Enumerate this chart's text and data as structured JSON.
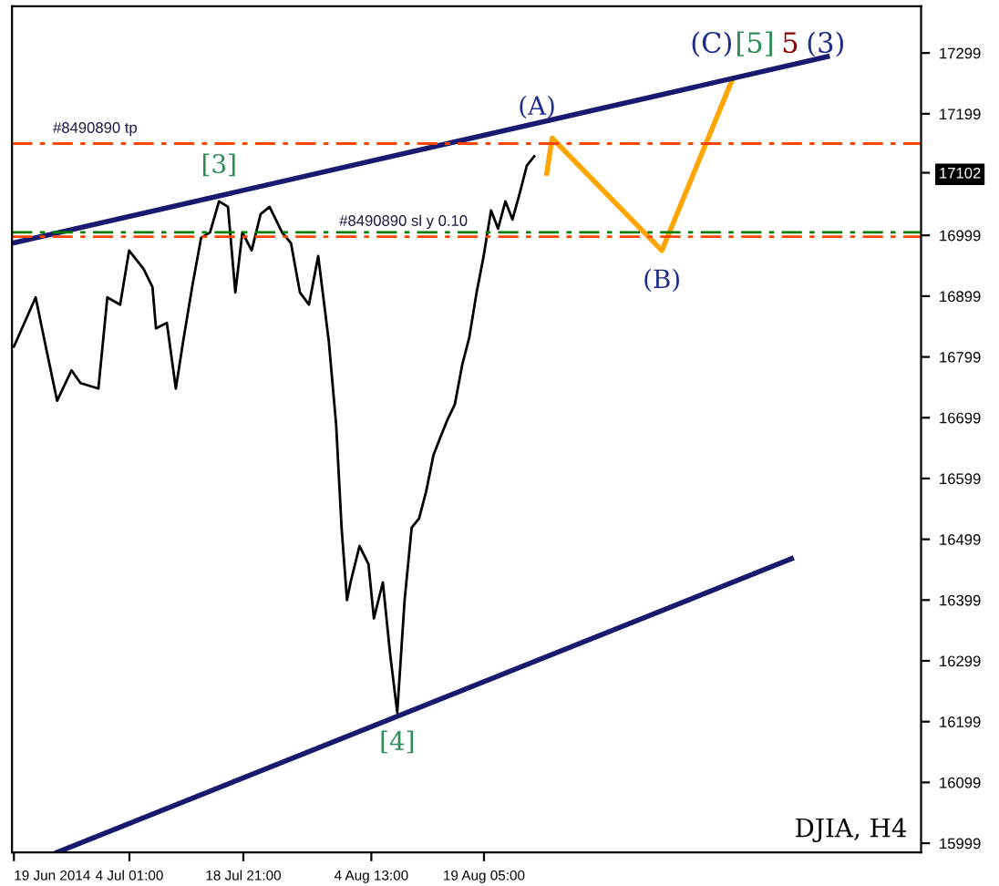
{
  "chart_data": {
    "type": "line",
    "title": "DJIA, H4",
    "series": [
      {
        "color": "#000000",
        "x": [
          "2014-06-19T00:00",
          "2014-06-21T20:00",
          "2014-06-23T00:00",
          "2014-06-24T15:00",
          "2014-06-26T12:00",
          "2014-06-27T16:00",
          "2014-06-30T00:00",
          "2014-07-01T04:00",
          "2014-07-02T20:00",
          "2014-07-04T00:00",
          "2014-07-05T21:00",
          "2014-07-07T01:00",
          "2014-07-07T12:00",
          "2014-07-08T22:00",
          "2014-07-10T02:00",
          "2014-07-11T01:00",
          "2014-07-12T05:00",
          "2014-07-13T09:00",
          "2014-07-14T13:00",
          "2014-07-15T17:00",
          "2014-07-16T21:00",
          "2014-07-17T20:00",
          "2014-07-18T18:00",
          "2014-07-19T23:00",
          "2014-07-21T03:00",
          "2014-07-22T07:00",
          "2014-07-23T22:00",
          "2014-07-25T02:00",
          "2014-07-26T06:00",
          "2014-07-27T10:00",
          "2014-07-28T15:00",
          "2014-07-30T00:00",
          "2014-07-30T23:00",
          "2014-07-31T16:00",
          "2014-08-01T09:00",
          "2014-08-01T20:00",
          "2014-08-03T00:00",
          "2014-08-04T04:00",
          "2014-08-04T21:00",
          "2014-08-06T01:00",
          "2014-08-07T00:00",
          "2014-08-07T22:00",
          "2014-08-08T21:00",
          "2014-08-09T19:00",
          "2014-08-10T18:00",
          "2014-08-11T16:00",
          "2014-08-12T15:00",
          "2014-08-13T13:00",
          "2014-08-14T12:00",
          "2014-08-15T10:00",
          "2014-08-16T09:00",
          "2014-08-17T07:00",
          "2014-08-18T06:00",
          "2014-08-19T04:00",
          "2014-08-20T03:00",
          "2014-08-21T01:00",
          "2014-08-22T00:00",
          "2014-08-22T22:00",
          "2014-08-23T21:00",
          "2014-08-24T19:00",
          "2014-08-25T18:00"
        ],
        "values": [
          16816,
          16897,
          16825,
          16727,
          16777,
          16756,
          16747,
          16897,
          16885,
          16974,
          16944,
          16914,
          16846,
          16855,
          16747,
          16825,
          16914,
          16995,
          17004,
          17055,
          17046,
          16905,
          17004,
          16974,
          17034,
          17046,
          17004,
          16986,
          16905,
          16885,
          16965,
          16825,
          16688,
          16518,
          16399,
          16428,
          16488,
          16458,
          16369,
          16428,
          16309,
          16214,
          16399,
          16518,
          16533,
          16577,
          16637,
          16667,
          16697,
          16721,
          16786,
          16831,
          16905,
          16965,
          17040,
          17010,
          17055,
          17025,
          17069,
          17114,
          17129
        ]
      },
      {
        "color": "#ffa500",
        "x": [
          "2014-08-27T09:00",
          "2014-08-28T02:00",
          "2014-09-11T09:00",
          "2014-09-20T12:00"
        ],
        "values": [
          17101,
          17159,
          16974,
          17254
        ]
      },
      {
        "color": "#191970",
        "x": [
          "2014-06-18T18:00",
          "2014-10-02T22:00"
        ],
        "values": [
          16986,
          17293
        ]
      },
      {
        "color": "#191970",
        "x": [
          "2014-06-24T15:00",
          "2014-09-28T06:00"
        ],
        "values": [
          15984,
          16467
        ]
      }
    ],
    "xlim": [
      "2014-06-18T18:00",
      "2014-10-15T03:00"
    ],
    "xticks": [
      {
        "value": "2014-06-19T00:00",
        "label": "19 Jun 2014"
      },
      {
        "value": "2014-07-04T01:00",
        "label": "4 Jul 01:00"
      },
      {
        "value": "2014-07-18T21:00",
        "label": "18 Jul 21:00"
      },
      {
        "value": "2014-08-04T13:00",
        "label": "4 Aug 13:00"
      },
      {
        "value": "2014-08-19T05:00",
        "label": "19 Aug 05:00"
      }
    ],
    "ylim": [
      15984,
      17376
    ],
    "yticks": [
      15999,
      16099,
      16199,
      16299,
      16399,
      16499,
      16599,
      16699,
      16799,
      16899,
      16999,
      {
        "value": 17102,
        "label": "17102"
      },
      17199,
      17299
    ],
    "ref_lines": [
      {
        "axis": "y",
        "value": 17150,
        "label": "#8490890 tp",
        "color": "#ff4500",
        "line_style": "dashed"
      },
      {
        "axis": "y",
        "value": 16997,
        "label": "#8490890 sl y 0.10",
        "color": "#ff4500",
        "line_style": "dashed"
      },
      {
        "axis": "y",
        "value": 17004,
        "color": "#008000",
        "line_style": "dashed"
      }
    ],
    "annotations": [
      {
        "text": "[3]",
        "x": "2014-07-15T17:00",
        "y": 17055
      },
      {
        "text": "(A)",
        "x": "2014-08-28T02:00",
        "y": 17159
      },
      {
        "text": "(B)",
        "x": "2014-09-11T09:00",
        "y": 16974
      },
      {
        "text": "[4]",
        "x": "2014-08-07T22:00",
        "y": 16214
      },
      {
        "text": "(C)",
        "x": "2014-09-20T12:00",
        "y": 17254
      },
      {
        "text": "[5]",
        "x": "2014-09-20T12:00",
        "y": 17254
      },
      {
        "text": "5",
        "x": "2014-09-20T12:00",
        "y": 17254
      },
      {
        "text": "(3)",
        "x": "2014-09-20T12:00",
        "y": 17254
      }
    ],
    "grid": false,
    "legend": false
  }
}
